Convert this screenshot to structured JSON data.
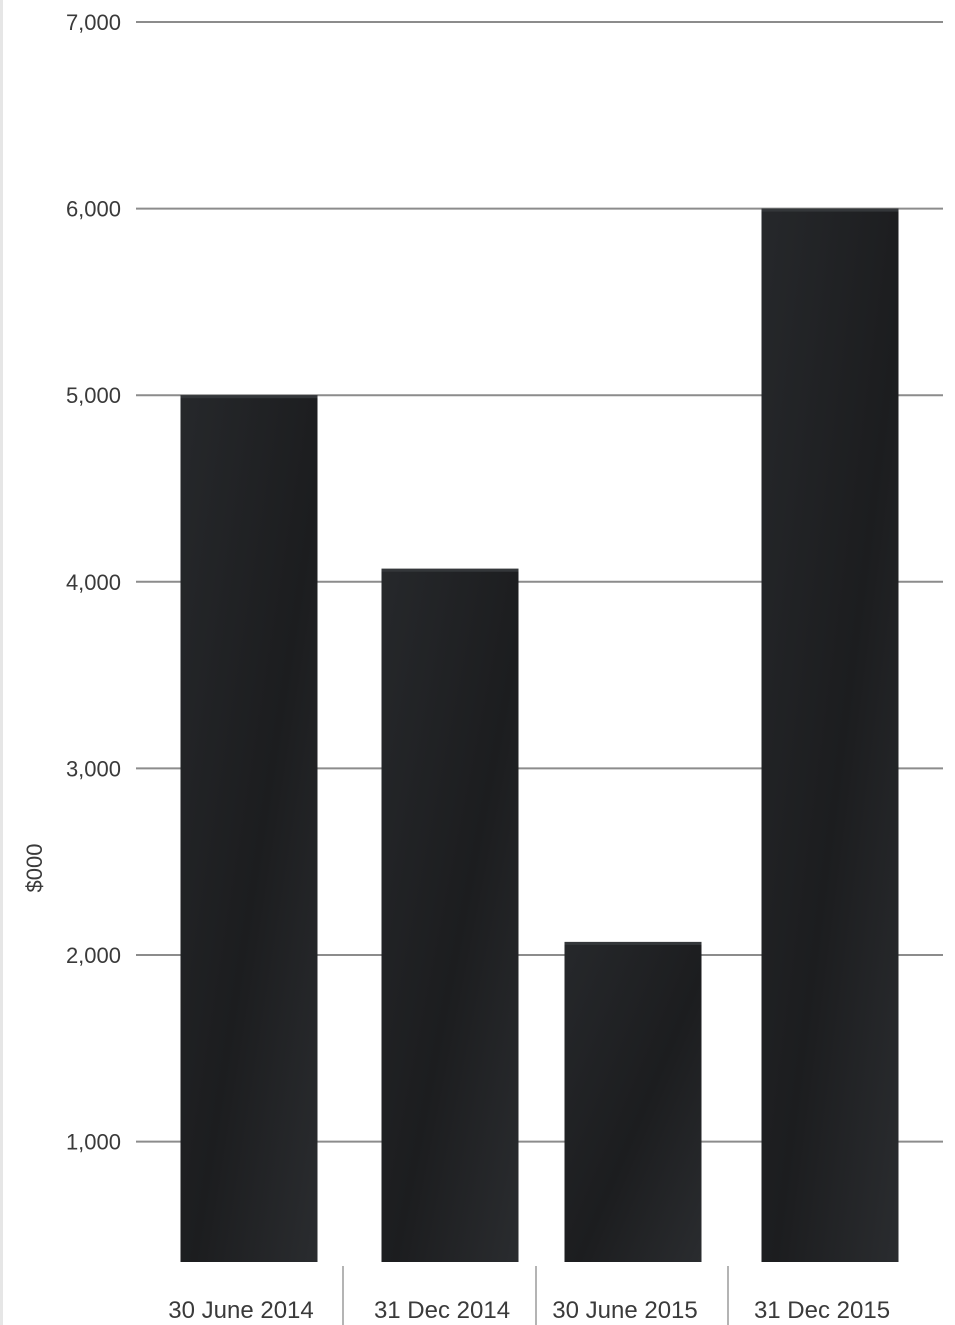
{
  "chart_data": {
    "type": "bar",
    "categories": [
      "30 June 2014",
      "31 Dec 2014",
      "30 June 2015",
      "31 Dec 2015"
    ],
    "values": [
      5000,
      4070,
      2070,
      6000
    ],
    "ylabel": "$000",
    "ylim": [
      0,
      7000
    ],
    "yticks": [
      {
        "value": 1000,
        "label": "1,000"
      },
      {
        "value": 2000,
        "label": "2,000"
      },
      {
        "value": 3000,
        "label": "3,000"
      },
      {
        "value": 4000,
        "label": "4,000"
      },
      {
        "value": 5000,
        "label": "5,000"
      },
      {
        "value": 6000,
        "label": "6,000"
      },
      {
        "value": 7000,
        "label": "7,000"
      }
    ],
    "grid": true,
    "legend": "none"
  },
  "colors": {
    "bar": "#1f2022",
    "bar_highlight": "#34373a",
    "gridline": "#8c8c8c",
    "tick_label": "#3a3a3a",
    "category_divider": "#9a9a9a"
  }
}
